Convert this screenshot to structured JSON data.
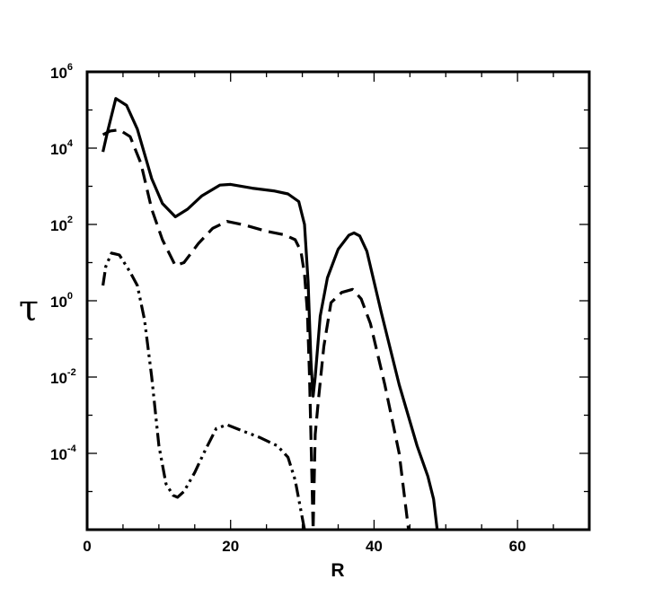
{
  "chart_data": {
    "type": "line",
    "xlabel": "R",
    "ylabel": "τ",
    "xlim": [
      0,
      70
    ],
    "ylim_log10": [
      -6,
      6
    ],
    "yscale": "log",
    "grid": false,
    "x_ticks": [
      0,
      20,
      40,
      60
    ],
    "x_tick_labels": [
      "0",
      "20",
      "40",
      "60"
    ],
    "y_tick_exponents": [
      6,
      4,
      2,
      0,
      -2,
      -4
    ],
    "y_tick_base": "10",
    "y_tick_exp_labels": [
      "6",
      "4",
      "2",
      "0",
      "-2",
      "-4"
    ],
    "series": [
      {
        "style": "solid",
        "points": [
          [
            2.2,
            3.9
          ],
          [
            2.8,
            4.4
          ],
          [
            4.0,
            5.3
          ],
          [
            5.5,
            5.12
          ],
          [
            7.0,
            4.5
          ],
          [
            9.0,
            3.2
          ],
          [
            10.5,
            2.55
          ],
          [
            12.3,
            2.2
          ],
          [
            14.0,
            2.4
          ],
          [
            16.0,
            2.75
          ],
          [
            18.5,
            3.03
          ],
          [
            20.0,
            3.05
          ],
          [
            23.0,
            2.95
          ],
          [
            26.0,
            2.88
          ],
          [
            28.0,
            2.8
          ],
          [
            29.5,
            2.6
          ],
          [
            30.3,
            2.0
          ],
          [
            30.8,
            0.5
          ],
          [
            31.2,
            -1.6
          ],
          [
            31.5,
            -2.5
          ],
          [
            31.8,
            -2.0
          ],
          [
            32.5,
            -0.4
          ],
          [
            33.5,
            0.6
          ],
          [
            35.0,
            1.35
          ],
          [
            36.5,
            1.72
          ],
          [
            37.2,
            1.78
          ],
          [
            38.0,
            1.7
          ],
          [
            39.0,
            1.3
          ],
          [
            41.0,
            -0.3
          ],
          [
            43.5,
            -2.2
          ],
          [
            46.0,
            -3.8
          ],
          [
            47.5,
            -4.6
          ],
          [
            48.3,
            -5.2
          ],
          [
            48.8,
            -6.0
          ]
        ]
      },
      {
        "style": "dashed",
        "points": [
          [
            2.2,
            4.35
          ],
          [
            3.2,
            4.45
          ],
          [
            4.5,
            4.48
          ],
          [
            6.0,
            4.3
          ],
          [
            7.5,
            3.6
          ],
          [
            9.0,
            2.4
          ],
          [
            10.5,
            1.6
          ],
          [
            12.3,
            0.92
          ],
          [
            13.5,
            1.0
          ],
          [
            15.5,
            1.5
          ],
          [
            17.5,
            1.9
          ],
          [
            19.5,
            2.08
          ],
          [
            22.0,
            1.98
          ],
          [
            25.0,
            1.82
          ],
          [
            27.5,
            1.73
          ],
          [
            29.0,
            1.6
          ],
          [
            29.8,
            1.3
          ],
          [
            30.3,
            0.7
          ],
          [
            30.7,
            -0.3
          ],
          [
            31.0,
            -2.0
          ],
          [
            31.5,
            -6.0
          ],
          [
            31.8,
            -3.5
          ],
          [
            32.3,
            -2.5
          ],
          [
            33.0,
            -1.2
          ],
          [
            34.0,
            -0.05
          ],
          [
            35.5,
            0.22
          ],
          [
            37.0,
            0.3
          ],
          [
            38.2,
            0.05
          ],
          [
            39.5,
            -0.6
          ],
          [
            41.5,
            -2.2
          ],
          [
            43.5,
            -4.0
          ],
          [
            44.8,
            -6.0
          ]
        ]
      },
      {
        "style": "dash-dot-dot",
        "points": [
          [
            2.2,
            0.4
          ],
          [
            2.6,
            0.9
          ],
          [
            3.4,
            1.25
          ],
          [
            4.5,
            1.2
          ],
          [
            6.0,
            0.75
          ],
          [
            7.0,
            0.4
          ],
          [
            8.0,
            -0.5
          ],
          [
            9.0,
            -2.0
          ],
          [
            10.0,
            -3.8
          ],
          [
            11.0,
            -4.8
          ],
          [
            12.0,
            -5.1
          ],
          [
            12.6,
            -5.15
          ],
          [
            13.5,
            -5.0
          ],
          [
            15.0,
            -4.5
          ],
          [
            16.5,
            -3.9
          ],
          [
            18.0,
            -3.35
          ],
          [
            19.5,
            -3.25
          ],
          [
            21.5,
            -3.4
          ],
          [
            24.0,
            -3.58
          ],
          [
            26.5,
            -3.8
          ],
          [
            28.0,
            -4.1
          ],
          [
            29.0,
            -4.7
          ],
          [
            29.8,
            -5.5
          ],
          [
            30.3,
            -6.0
          ]
        ]
      }
    ]
  }
}
